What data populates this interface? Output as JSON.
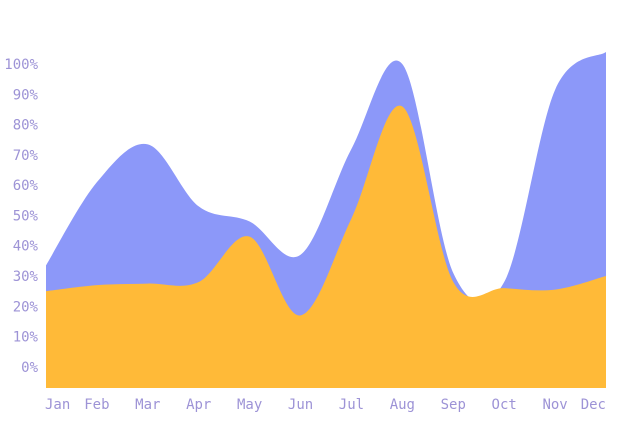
{
  "chart_data": {
    "type": "area",
    "stacked": true,
    "smooth": true,
    "categories": [
      "Jan",
      "Feb",
      "Mar",
      "Apr",
      "May",
      "Jun",
      "Jul",
      "Aug",
      "Sep",
      "Oct",
      "Nov",
      "Dec"
    ],
    "y_ticks": [
      "0%",
      "10%",
      "20%",
      "30%",
      "40%",
      "50%",
      "60%",
      "70%",
      "80%",
      "90%",
      "100%"
    ],
    "ylim": [
      -7,
      104
    ],
    "grid": false,
    "legend": "none",
    "title": "",
    "xlabel": "",
    "ylabel": "",
    "series": [
      {
        "color": "#FFBA38",
        "values": [
          25,
          27,
          27.5,
          28,
          43,
          17,
          49,
          86,
          28,
          26,
          25.5,
          30
        ]
      },
      {
        "color": "#8C98F9",
        "values": [
          8.5,
          34,
          46,
          25,
          5,
          20,
          23,
          14,
          3,
          2,
          66,
          74
        ]
      }
    ],
    "axis_label_color": "#9D93D6"
  }
}
